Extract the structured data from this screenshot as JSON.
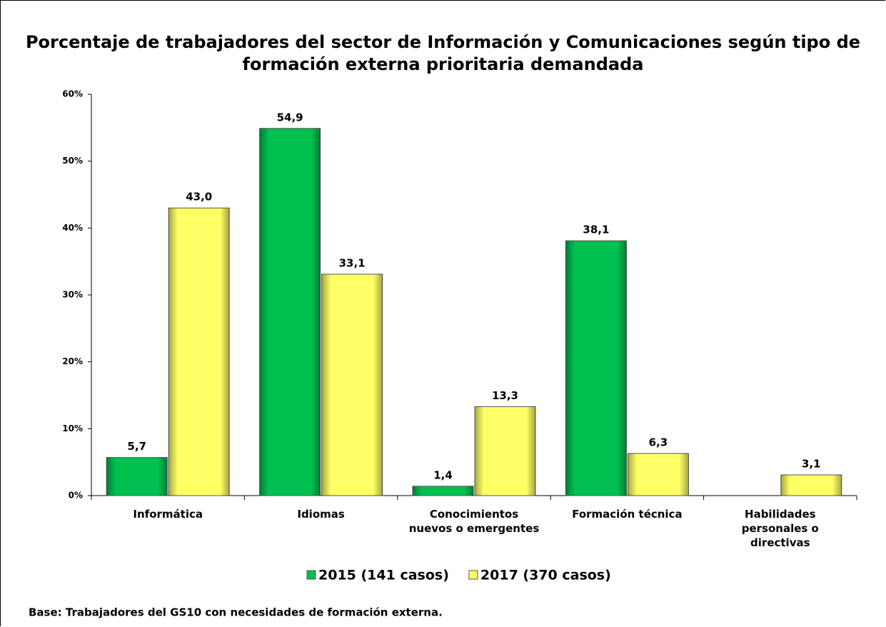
{
  "chart_data": {
    "type": "bar",
    "title": "Porcentaje de trabajadores del sector de Información y Comunicaciones según tipo de formación externa prioritaria demandada",
    "categories": [
      "Informática",
      "Idiomas",
      "Conocimientos nuevos o emergentes",
      "Formación técnica",
      "Habilidades personales o directivas"
    ],
    "series": [
      {
        "name": "2015 (141 casos)",
        "color": "#00c050",
        "values": [
          5.7,
          54.9,
          1.4,
          38.1,
          null
        ],
        "value_labels": [
          "5,7",
          "54,9",
          "1,4",
          "38,1",
          null
        ]
      },
      {
        "name": "2017 (370 casos)",
        "color": "#ffff66",
        "values": [
          43.0,
          33.1,
          13.3,
          6.3,
          3.1
        ],
        "value_labels": [
          "43,0",
          "33,1",
          "13,3",
          "6,3",
          "3,1"
        ]
      }
    ],
    "ylim": [
      0,
      60
    ],
    "yticks": [
      {
        "value": 0,
        "label": "0%"
      },
      {
        "value": 10,
        "label": "10%"
      },
      {
        "value": 20,
        "label": "20%"
      },
      {
        "value": 30,
        "label": "30%"
      },
      {
        "value": 40,
        "label": "40%"
      },
      {
        "value": 50,
        "label": "50%"
      },
      {
        "value": 60,
        "label": "60%"
      }
    ],
    "legend": "bottom",
    "note": "Base: Trabajadores del GS10 con necesidades de formación externa."
  }
}
